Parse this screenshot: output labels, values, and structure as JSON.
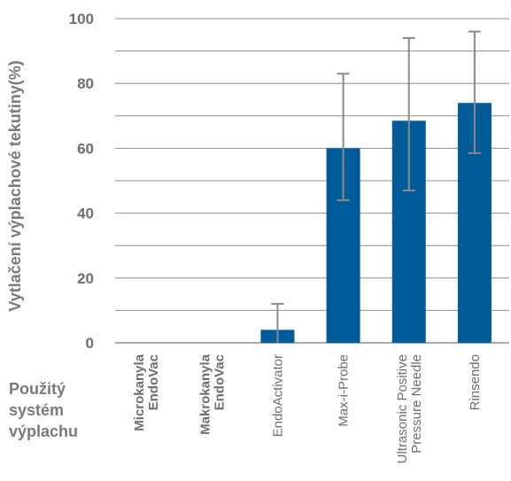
{
  "chart_data": {
    "type": "bar",
    "ylabel": "Vytlačení výplachové tekutiny(%)",
    "xlabel_lines": [
      "Použitý",
      "systém",
      "výplachu"
    ],
    "ylim": [
      0,
      100
    ],
    "y_ticks": [
      0,
      20,
      40,
      60,
      80,
      100
    ],
    "grid_step": 10,
    "grid": true,
    "categories": [
      {
        "lines": [
          "Microkanyla",
          "EndoVac"
        ],
        "bold": true
      },
      {
        "lines": [
          "Makrokanyla",
          "EndoVac"
        ],
        "bold": true
      },
      {
        "lines": [
          "EndoActivator"
        ],
        "bold": false
      },
      {
        "lines": [
          "Max-i-Probe"
        ],
        "bold": false
      },
      {
        "lines": [
          "Ultrasonic Positive",
          "Pressure Needle"
        ],
        "bold": false
      },
      {
        "lines": [
          "Rinsendo"
        ],
        "bold": false
      }
    ],
    "values": [
      0,
      0,
      4,
      60,
      68.5,
      74
    ],
    "error_low": [
      null,
      null,
      0,
      44,
      47,
      58.5
    ],
    "error_high": [
      null,
      null,
      12,
      83,
      94,
      96
    ],
    "colors": {
      "bar": "#005b9a",
      "grid": "#8c8c8c",
      "error_bar": "#8a8a8a",
      "text": "#6e6e6e"
    }
  }
}
